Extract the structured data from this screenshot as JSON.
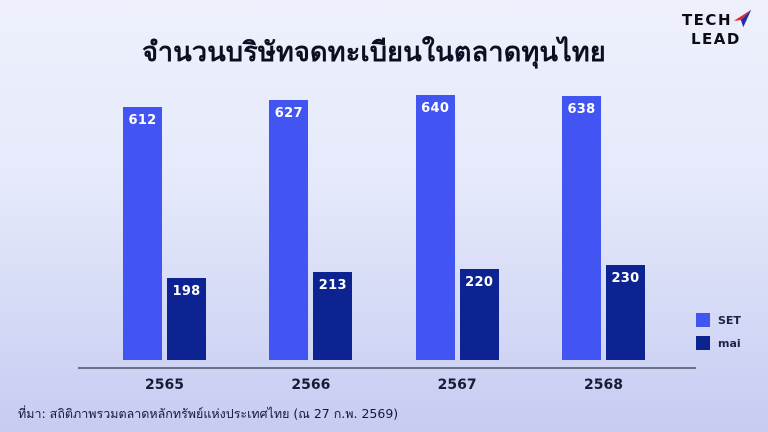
{
  "header": {
    "title": "จำนวนบริษัทจดทะเบียนในตลาดทุนไทย",
    "logo": {
      "line1": "TECH",
      "line2": "LEAD"
    }
  },
  "chart_data": {
    "type": "bar",
    "title": "จำนวนบริษัทจดทะเบียนในตลาดทุนไทย",
    "categories": [
      "2565",
      "2566",
      "2567",
      "2568"
    ],
    "series": [
      {
        "name": "SET",
        "color": "#4254f2",
        "values": [
          612,
          627,
          640,
          638
        ]
      },
      {
        "name": "mai",
        "color": "#0d2391",
        "values": [
          198,
          213,
          220,
          230
        ]
      }
    ],
    "xlabel": "",
    "ylabel": "",
    "ylim": [
      0,
      700
    ],
    "grid": false,
    "legend_position": "right",
    "value_labels": "inside-top-white"
  },
  "footer": {
    "source": "ที่มา: สถิติภาพรวมตลาดหลักทรัพย์แห่งประเทศไทย (ณ 27 ก.พ. 2569)"
  },
  "colors": {
    "set_bar": "#4254f2",
    "mai_bar": "#0d2391",
    "background_top": "#eef0fc",
    "background_bottom": "#c6ccf2",
    "axis_line": "#6b7189",
    "title_text": "#0b0f21",
    "logo_plane_red": "#e8232d",
    "logo_plane_blue": "#1c2fa8"
  },
  "icons": {
    "logo_plane": "paper-plane-icon"
  }
}
